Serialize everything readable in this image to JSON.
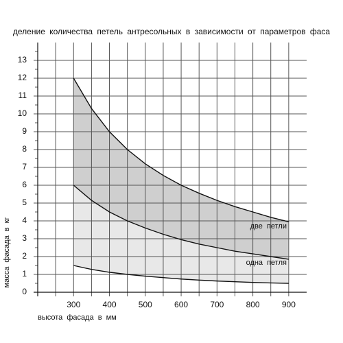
{
  "chart_data": {
    "type": "line",
    "title": "деление количества петель антресольных в зависимости от параметров фаса",
    "x_label": "высота фасада в мм",
    "y_label": "масса фасада в кг",
    "x": [
      300,
      350,
      400,
      450,
      500,
      550,
      600,
      650,
      700,
      750,
      800,
      850,
      900
    ],
    "series": [
      {
        "color": "#111111",
        "values": [
          12,
          10.3,
          9,
          8,
          7.2,
          6.55,
          6,
          5.55,
          5.15,
          4.8,
          4.5,
          4.2,
          3.95
        ]
      },
      {
        "color": "#111111",
        "values": [
          6,
          5.15,
          4.5,
          4,
          3.6,
          3.25,
          2.95,
          2.7,
          2.5,
          2.3,
          2.15,
          2,
          1.85
        ]
      },
      {
        "color": "#111111",
        "values": [
          1.5,
          1.28,
          1.12,
          1,
          0.9,
          0.82,
          0.74,
          0.68,
          0.63,
          0.59,
          0.55,
          0.52,
          0.5
        ]
      }
    ],
    "annotations": [
      "две петли",
      "одна петля"
    ],
    "band_colors": [
      "#cfcfcf",
      "#e8e8e8"
    ],
    "xlim": [
      200,
      950
    ],
    "xticks": [
      300,
      400,
      500,
      600,
      700,
      800,
      900
    ],
    "xgrid": [
      250,
      300,
      350,
      400,
      450,
      500,
      550,
      600,
      650,
      700,
      750,
      800,
      850,
      900
    ],
    "ylim": [
      0,
      14
    ],
    "yticks": [
      0,
      1,
      2,
      3,
      4,
      5,
      6,
      7,
      8,
      9,
      10,
      11,
      12,
      13
    ],
    "yminor": [
      0.5,
      1.5,
      2.5,
      3.5,
      4.5,
      5.5,
      6.5,
      7.5,
      8.5,
      9.5,
      10.5,
      11.5,
      12.5,
      13.5
    ],
    "grid": true
  }
}
